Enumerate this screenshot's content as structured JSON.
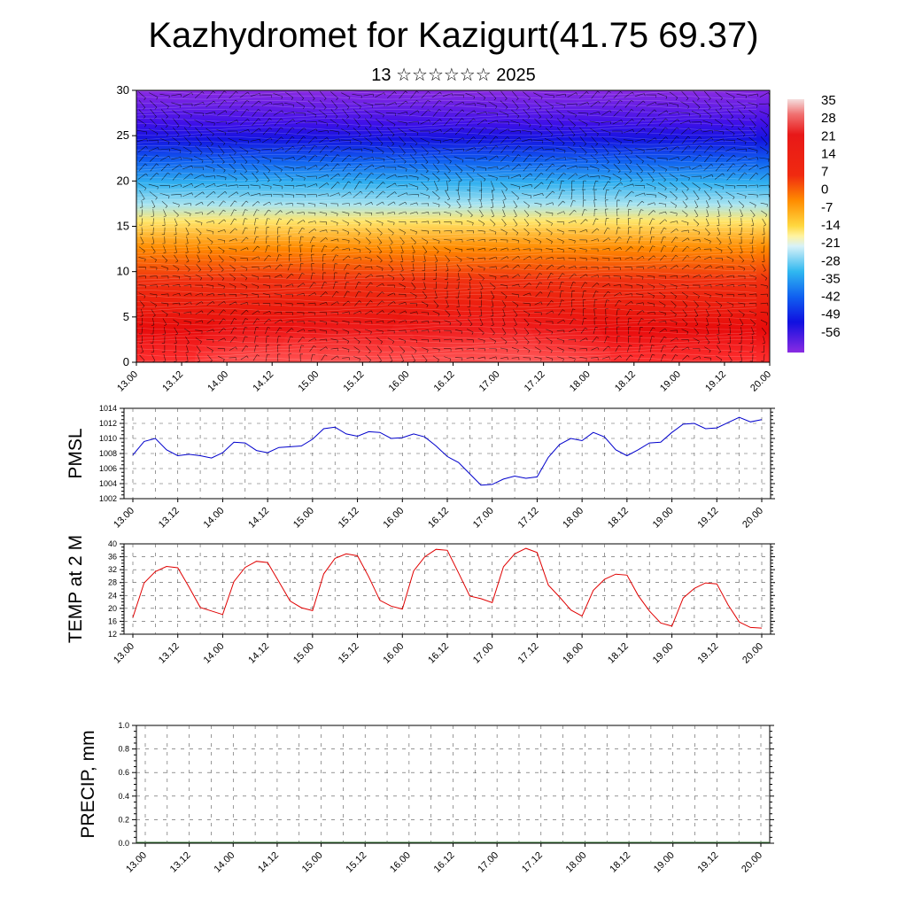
{
  "page": {
    "title": "Kazhydromet for Kazigurt(41.75 69.37)",
    "subtitle": "13 ☆☆☆☆☆☆ 2025"
  },
  "time_labels": [
    "13.00",
    "13.12",
    "14.00",
    "14.12",
    "15.00",
    "15.12",
    "16.00",
    "16.12",
    "17.00",
    "17.12",
    "18.00",
    "18.12",
    "19.00",
    "19.12",
    "20.00"
  ],
  "chart_data": [
    {
      "type": "heatmap",
      "name": "cross-section",
      "ylim": [
        0,
        30
      ],
      "yticks": [
        0,
        5,
        10,
        15,
        20,
        25,
        30
      ],
      "colorbar": {
        "labels": [
          "35",
          "28",
          "21",
          "14",
          "7",
          "0",
          "-7",
          "-14",
          "-21",
          "-28",
          "-35",
          "-42",
          "-49",
          "-56"
        ]
      },
      "profile_temperature": [
        {
          "height": 0,
          "temp": 30
        },
        {
          "height": 4,
          "temp": 22
        },
        {
          "height": 8,
          "temp": 14
        },
        {
          "height": 12,
          "temp": 4
        },
        {
          "height": 15,
          "temp": -8
        },
        {
          "height": 18,
          "temp": -30
        },
        {
          "height": 21,
          "temp": -45
        },
        {
          "height": 24,
          "temp": -56
        },
        {
          "height": 27,
          "temp": -62
        },
        {
          "height": 30,
          "temp": -65
        }
      ],
      "colors": {
        "warm_max": "#f0f0f0",
        "red": "#e01010",
        "orange": "#ff7f00",
        "yellow": "#ffe050",
        "cyan": "#40c0f0",
        "blue": "#1010e0",
        "purple": "#8a2be2"
      }
    },
    {
      "type": "line",
      "ylabel": "PMSL",
      "ylim": [
        1002,
        1014
      ],
      "yticks": [
        1002,
        1004,
        1006,
        1008,
        1010,
        1012,
        1014
      ],
      "color": "#0000cc",
      "x": [
        0,
        3,
        6,
        9,
        12,
        15,
        18,
        21,
        24,
        27,
        30,
        33,
        36,
        39,
        42,
        45,
        48,
        51,
        54,
        57,
        60,
        63,
        66,
        69,
        72,
        75,
        78,
        81,
        84,
        87,
        90,
        93,
        96,
        99,
        102,
        105,
        108,
        111,
        114,
        117,
        120,
        123,
        126,
        129,
        132,
        135,
        138,
        141,
        144,
        147,
        150,
        153,
        156,
        159,
        162,
        165,
        168
      ],
      "values": [
        1007.8,
        1009.6,
        1010.0,
        1008.5,
        1007.7,
        1007.9,
        1007.7,
        1007.4,
        1008.1,
        1009.5,
        1009.4,
        1008.4,
        1008.1,
        1008.8,
        1008.9,
        1009.0,
        1009.9,
        1011.3,
        1011.5,
        1010.6,
        1010.3,
        1010.9,
        1010.8,
        1010.0,
        1010.1,
        1010.6,
        1010.2,
        1009.0,
        1007.6,
        1006.8,
        1005.3,
        1003.8,
        1003.9,
        1004.6,
        1005.0,
        1004.7,
        1004.9,
        1007.5,
        1009.2,
        1010.0,
        1009.7,
        1010.8,
        1010.2,
        1008.5,
        1007.7,
        1008.5,
        1009.4,
        1009.5,
        1010.8,
        1011.9,
        1012.0,
        1011.3,
        1011.4,
        1012.1,
        1012.8,
        1012.2,
        1012.5
      ],
      "xticks": [
        "13.00",
        "13.12",
        "14.00",
        "14.12",
        "15.00",
        "15.12",
        "16.00",
        "16.12",
        "17.00",
        "17.12",
        "18.00",
        "18.12",
        "19.00",
        "19.12",
        "20.00"
      ]
    },
    {
      "type": "line",
      "ylabel": "TEMP at 2 M",
      "ylim": [
        12,
        40
      ],
      "yticks": [
        12,
        16,
        20,
        24,
        28,
        32,
        36,
        40
      ],
      "color": "#e00000",
      "x": [
        0,
        3,
        6,
        9,
        12,
        15,
        18,
        21,
        24,
        27,
        30,
        33,
        36,
        39,
        42,
        45,
        48,
        51,
        54,
        57,
        60,
        63,
        66,
        69,
        72,
        75,
        78,
        81,
        84,
        87,
        90,
        93,
        96,
        99,
        102,
        105,
        108,
        111,
        114,
        117,
        120,
        123,
        126,
        129,
        132,
        135,
        138,
        141,
        144,
        147,
        150,
        153,
        156,
        159,
        162,
        165,
        168
      ],
      "values": [
        17.2,
        27.9,
        31.4,
        33.0,
        32.6,
        26.6,
        20.3,
        19.2,
        18.1,
        28.3,
        32.7,
        34.6,
        34.2,
        28.3,
        22.3,
        20.2,
        19.3,
        30.7,
        35.5,
        36.9,
        36.3,
        29.8,
        22.5,
        20.7,
        19.8,
        31.6,
        36.0,
        38.3,
        38.0,
        31.0,
        23.8,
        23.0,
        21.8,
        32.9,
        36.9,
        38.6,
        37.3,
        27.2,
        23.5,
        19.5,
        17.6,
        25.6,
        29.0,
        30.6,
        30.3,
        24.0,
        19.2,
        15.5,
        14.5,
        23.2,
        26.2,
        27.9,
        27.6,
        21.1,
        15.8,
        14.1,
        13.9
      ],
      "xticks": [
        "13.00",
        "13.12",
        "14.00",
        "14.12",
        "15.00",
        "15.12",
        "16.00",
        "16.12",
        "17.00",
        "17.12",
        "18.00",
        "18.12",
        "19.00",
        "19.12",
        "20.00"
      ]
    },
    {
      "type": "bar",
      "ylabel": "PRECIP, mm",
      "ylim": [
        0,
        1
      ],
      "yticks": [
        "0.0",
        "0.2",
        "0.4",
        "0.6",
        "0.8",
        "1.0"
      ],
      "values": [],
      "xticks": [
        "13.00",
        "13.12",
        "14.00",
        "14.12",
        "15.00",
        "15.12",
        "16.00",
        "16.12",
        "17.00",
        "17.12",
        "18.00",
        "18.12",
        "19.00",
        "19.12",
        "20.00"
      ]
    }
  ]
}
